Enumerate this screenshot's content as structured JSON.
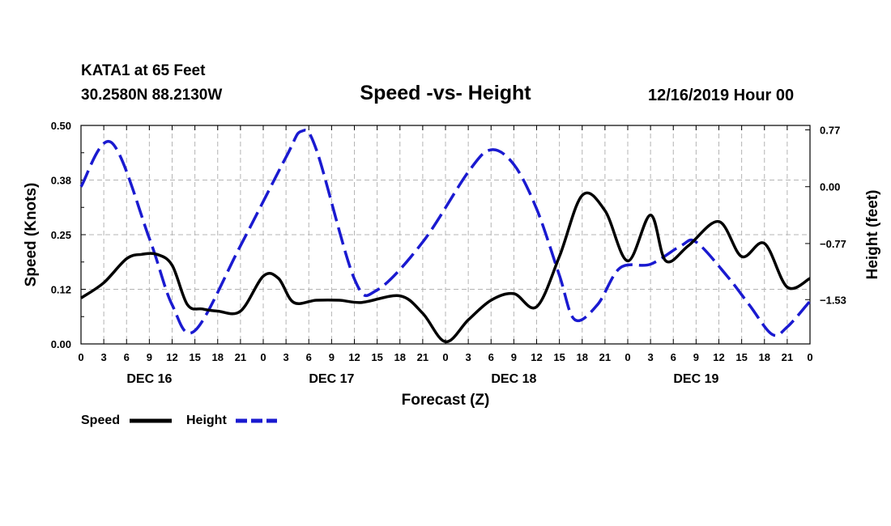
{
  "header": {
    "station": "KATA1 at 65 Feet",
    "coords": "30.2580N 88.2130W",
    "title": "Speed -vs- Height",
    "run": "12/16/2019 Hour 00"
  },
  "colors": {
    "speed": "#000000",
    "height": "#1a1ad0",
    "grid": "#b4b4b4"
  },
  "chart_data": {
    "type": "line",
    "title": "Speed -vs- Height",
    "xlabel": "Forecast (Z)",
    "ylabel_left": "Speed (Knots)",
    "ylabel_right": "Height (feet)",
    "x_range_hours": [
      0,
      96
    ],
    "ylim_left": [
      0,
      0.5
    ],
    "ylim_right": [
      -2.13,
      0.83
    ],
    "left_ticks": [
      "0.00",
      "0.12",
      "0.25",
      "0.38",
      "0.50"
    ],
    "right_ticks": [
      {
        "value": 0.77,
        "label": "0.77"
      },
      {
        "value": 0.0,
        "label": "0.00"
      },
      {
        "value": -0.77,
        "label": "−0.77"
      },
      {
        "value": -1.53,
        "label": "−1.53"
      }
    ],
    "x_tick_labels": [
      "0",
      "3",
      "6",
      "9",
      "12",
      "15",
      "18",
      "21",
      "0",
      "3",
      "6",
      "9",
      "12",
      "15",
      "18",
      "21",
      "0",
      "3",
      "6",
      "9",
      "12",
      "15",
      "18",
      "21",
      "0",
      "3",
      "6",
      "9",
      "12",
      "15",
      "18",
      "21",
      "0"
    ],
    "day_labels": [
      {
        "label": "DEC 16",
        "hour": 9
      },
      {
        "label": "DEC 17",
        "hour": 33
      },
      {
        "label": "DEC 18",
        "hour": 57
      },
      {
        "label": "DEC 19",
        "hour": 81
      }
    ],
    "grid": true,
    "series": [
      {
        "name": "Speed",
        "axis": "left",
        "style": "solid",
        "points": [
          [
            0,
            0.105
          ],
          [
            3,
            0.14
          ],
          [
            6,
            0.195
          ],
          [
            8,
            0.205
          ],
          [
            10,
            0.205
          ],
          [
            12,
            0.18
          ],
          [
            14,
            0.09
          ],
          [
            16,
            0.08
          ],
          [
            18,
            0.075
          ],
          [
            21,
            0.075
          ],
          [
            24,
            0.155
          ],
          [
            26,
            0.15
          ],
          [
            28,
            0.095
          ],
          [
            31,
            0.1
          ],
          [
            34,
            0.1
          ],
          [
            37,
            0.095
          ],
          [
            42,
            0.11
          ],
          [
            45,
            0.07
          ],
          [
            48,
            0.005
          ],
          [
            51,
            0.055
          ],
          [
            54,
            0.1
          ],
          [
            57,
            0.115
          ],
          [
            60,
            0.085
          ],
          [
            63,
            0.2
          ],
          [
            66,
            0.34
          ],
          [
            69,
            0.305
          ],
          [
            72,
            0.19
          ],
          [
            75,
            0.295
          ],
          [
            77,
            0.19
          ],
          [
            80,
            0.225
          ],
          [
            84,
            0.28
          ],
          [
            87,
            0.2
          ],
          [
            90,
            0.23
          ],
          [
            93,
            0.13
          ],
          [
            96,
            0.15
          ]
        ]
      },
      {
        "name": "Height",
        "axis": "right",
        "style": "dashed",
        "points": [
          [
            0,
            0.0
          ],
          [
            4,
            0.6
          ],
          [
            9,
            -0.7
          ],
          [
            12,
            -1.6
          ],
          [
            15,
            -1.95
          ],
          [
            21,
            -0.8
          ],
          [
            27,
            0.4
          ],
          [
            29,
            0.75
          ],
          [
            31,
            0.5
          ],
          [
            36,
            -1.25
          ],
          [
            39,
            -1.4
          ],
          [
            45,
            -0.75
          ],
          [
            51,
            0.2
          ],
          [
            54,
            0.5
          ],
          [
            57,
            0.3
          ],
          [
            60,
            -0.3
          ],
          [
            63,
            -1.2
          ],
          [
            65,
            -1.8
          ],
          [
            68,
            -1.6
          ],
          [
            71,
            -1.1
          ],
          [
            75,
            -1.05
          ],
          [
            79,
            -0.8
          ],
          [
            81,
            -0.75
          ],
          [
            85,
            -1.2
          ],
          [
            88,
            -1.6
          ],
          [
            91,
            -2.0
          ],
          [
            93,
            -1.9
          ],
          [
            96,
            -1.55
          ]
        ]
      }
    ],
    "legend": [
      {
        "name": "Speed",
        "style": "solid"
      },
      {
        "name": "Height",
        "style": "dashed"
      }
    ]
  }
}
